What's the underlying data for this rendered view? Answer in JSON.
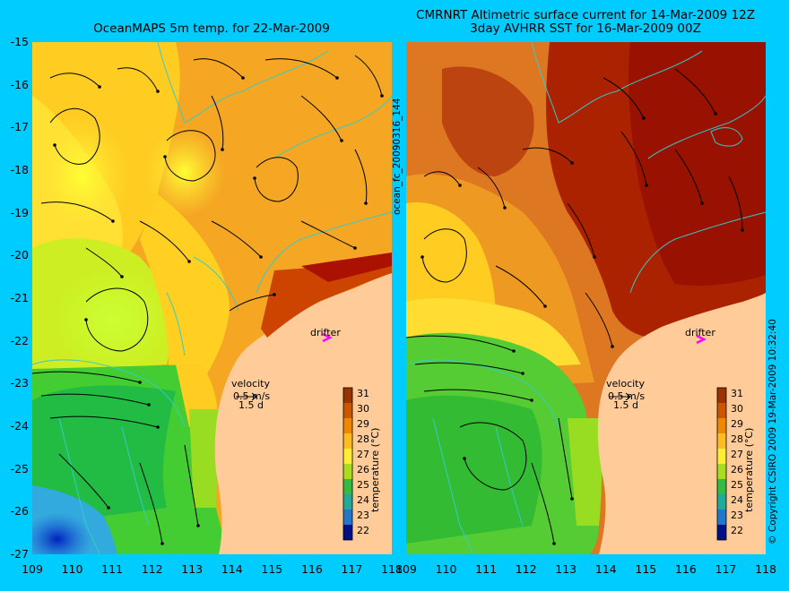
{
  "left": {
    "title": "OceanMAPS 5m temp. for 22-Mar-2009",
    "velocity_label": "velocity",
    "velocity_speed": "0.5 m/s",
    "velocity_time": "1.5 d",
    "drifter_label": "drifter",
    "colorbar_label": "temperature (°C)",
    "colorbar_ticks": [
      "31",
      "30",
      "29",
      "28",
      "27",
      "26",
      "25",
      "24",
      "23",
      "22"
    ]
  },
  "right": {
    "title_line1": "CMRNRT Altimetric surface current for 14-Mar-2009 12Z",
    "title_line2": "3day AVHRR SST for 16-Mar-2009 00Z",
    "velocity_label": "velocity",
    "velocity_speed": "0.5 m/s",
    "velocity_time": "1.5 d",
    "drifter_label": "drifter",
    "colorbar_label": "temperature (°C)",
    "colorbar_ticks": [
      "31",
      "30",
      "29",
      "28",
      "27",
      "26",
      "25",
      "24",
      "23",
      "22"
    ]
  },
  "side_label_middle": "ocean_fc_20090316_144",
  "side_label_right": "© Copyright CSIRO 2009   19-Mar-2009 10:32:40",
  "axes": {
    "y_ticks": [
      "-15",
      "-16",
      "-17",
      "-18",
      "-19",
      "-20",
      "-21",
      "-22",
      "-23",
      "-24",
      "-25",
      "-26",
      "-27"
    ],
    "x_ticks": [
      "109",
      "110",
      "111",
      "112",
      "113",
      "114",
      "115",
      "116",
      "117",
      "118"
    ]
  },
  "colors": {
    "background": "#00ccff",
    "land": "#ffcc99",
    "drifter": "#ff00ff"
  }
}
